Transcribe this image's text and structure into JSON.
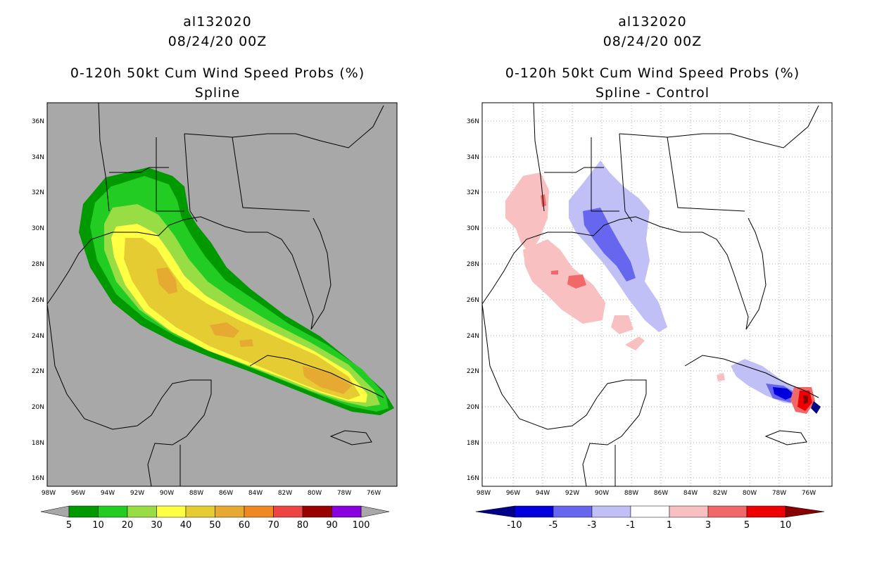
{
  "left_panel": {
    "storm_id": "al132020",
    "datetime": "08/24/20 00Z",
    "product": "0-120h 50kt Cum Wind Speed Probs (%)",
    "subtitle": "Spline",
    "lat_labels": [
      "36N",
      "34N",
      "32N",
      "30N",
      "28N",
      "26N",
      "24N",
      "22N",
      "20N",
      "18N",
      "16N"
    ],
    "lon_labels": [
      "98W",
      "96W",
      "94W",
      "92W",
      "90W",
      "88W",
      "86W",
      "84W",
      "82W",
      "80W",
      "78W",
      "76W"
    ],
    "colorbar": {
      "labels": [
        "5",
        "10",
        "20",
        "30",
        "40",
        "50",
        "60",
        "70",
        "80",
        "90",
        "100"
      ],
      "colors": [
        "#009900",
        "#22cc22",
        "#99dd44",
        "#ffff44",
        "#e6cc33",
        "#e6aa33",
        "#ee8822",
        "#ee4444",
        "#990000",
        "#8800dd"
      ],
      "under_color": "#a8a8a8",
      "over_color": "#a8a8a8"
    }
  },
  "right_panel": {
    "storm_id": "al132020",
    "datetime": "08/24/20 00Z",
    "product": "0-120h 50kt Cum Wind Speed Probs (%)",
    "subtitle": "Spline - Control",
    "lat_labels": [
      "36N",
      "34N",
      "32N",
      "30N",
      "28N",
      "26N",
      "24N",
      "22N",
      "20N",
      "18N",
      "16N"
    ],
    "lon_labels": [
      "98W",
      "96W",
      "94W",
      "92W",
      "90W",
      "88W",
      "86W",
      "84W",
      "82W",
      "80W",
      "78W",
      "76W"
    ],
    "colorbar": {
      "labels": [
        "-10",
        "-5",
        "-3",
        "-1",
        "1",
        "3",
        "5",
        "10"
      ],
      "colors": [
        "#0000dd",
        "#6666ee",
        "#c0c0f6",
        "#ffffff",
        "#f8c0c0",
        "#f06868",
        "#ee0000"
      ],
      "under_color": "#000088",
      "over_color": "#880000"
    }
  },
  "colors": {
    "map_background_left": "#a8a8a8",
    "map_background_right": "#ffffff"
  }
}
